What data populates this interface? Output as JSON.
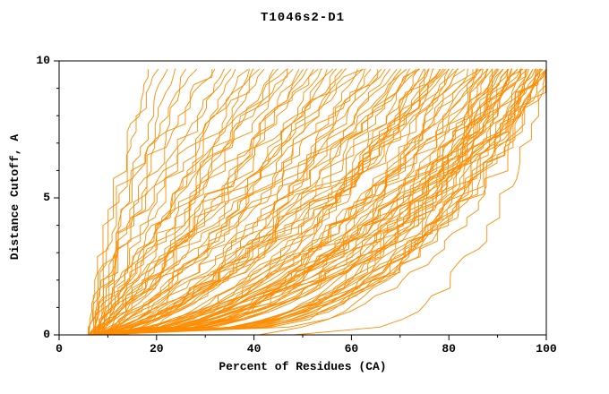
{
  "chart_data": {
    "type": "line",
    "title": "T1046s2-D1",
    "xlabel": "Percent of Residues (CA)",
    "ylabel": "Distance Cutoff, A",
    "xlim": [
      0,
      100
    ],
    "ylim": [
      0,
      10
    ],
    "x_ticks": [
      0,
      20,
      40,
      60,
      80,
      100
    ],
    "x_tick_labels": [
      "0",
      "20",
      "40",
      "60",
      "80",
      "100"
    ],
    "x_minor_step": 10,
    "y_ticks": [
      0,
      5,
      10
    ],
    "y_tick_labels": [
      "0",
      "5",
      "10"
    ],
    "y_minor_step": 1,
    "line_color": "#ff8c00",
    "axis_color": "#000000",
    "text_color": "#000000",
    "background": "#ffffff",
    "legend": "none",
    "grid": false,
    "description": "Ensemble of per-model cumulative GDT curves: distance cutoff (A) vs percent of CA residues fitting under that cutoff. Curves start near 5% at cutoff 0 and fan out; densest bundle reaches 85-100% at cutoff 10.",
    "y_top": 9.7,
    "seed": 20461,
    "curves_format": [
      "x_at_y0",
      "x_at_ytop",
      "shape_exponent"
    ],
    "curves": [
      [
        6,
        18,
        1.6
      ],
      [
        7,
        20,
        2.0
      ],
      [
        6,
        22,
        1.4
      ],
      [
        8,
        24,
        1.8
      ],
      [
        7,
        26,
        1.2
      ],
      [
        9,
        28,
        2.2
      ],
      [
        6,
        30,
        1.5
      ],
      [
        8,
        32,
        1.9
      ],
      [
        6,
        34,
        1.1
      ],
      [
        7,
        36,
        0.9
      ],
      [
        8,
        38,
        1.3
      ],
      [
        6,
        40,
        1.0
      ],
      [
        9,
        42,
        1.2
      ],
      [
        7,
        44,
        0.8
      ],
      [
        8,
        46,
        1.4
      ],
      [
        6,
        48,
        1.0
      ],
      [
        10,
        50,
        0.9
      ],
      [
        7,
        35,
        1.5
      ],
      [
        8,
        45,
        1.1
      ],
      [
        6,
        39,
        0.7
      ],
      [
        9,
        47,
        1.3
      ],
      [
        7,
        41,
        1.6
      ],
      [
        8,
        49,
        0.85
      ],
      [
        6,
        52,
        0.9
      ],
      [
        7,
        54,
        0.7
      ],
      [
        8,
        56,
        1.0
      ],
      [
        6,
        58,
        0.6
      ],
      [
        9,
        60,
        0.8
      ],
      [
        7,
        62,
        1.1
      ],
      [
        8,
        64,
        0.5
      ],
      [
        6,
        66,
        0.9
      ],
      [
        10,
        68,
        0.7
      ],
      [
        7,
        70,
        0.6
      ],
      [
        8,
        53,
        1.2
      ],
      [
        6,
        57,
        0.8
      ],
      [
        9,
        61,
        0.55
      ],
      [
        7,
        65,
        1.0
      ],
      [
        8,
        69,
        0.75
      ],
      [
        6,
        55,
        0.65
      ],
      [
        9,
        59,
        1.05
      ],
      [
        7,
        63,
        0.6
      ],
      [
        8,
        67,
        0.85
      ],
      [
        10,
        51,
        0.95
      ],
      [
        6,
        72,
        0.6
      ],
      [
        7,
        74,
        0.45
      ],
      [
        8,
        76,
        0.7
      ],
      [
        6,
        78,
        0.5
      ],
      [
        9,
        80,
        0.65
      ],
      [
        7,
        82,
        0.4
      ],
      [
        8,
        84,
        0.75
      ],
      [
        6,
        71,
        0.55
      ],
      [
        10,
        73,
        0.8
      ],
      [
        7,
        75,
        0.5
      ],
      [
        8,
        77,
        0.35
      ],
      [
        6,
        79,
        0.6
      ],
      [
        9,
        81,
        0.45
      ],
      [
        7,
        83,
        0.7
      ],
      [
        8,
        85,
        0.55
      ],
      [
        6,
        72,
        0.4
      ],
      [
        9,
        74,
        0.85
      ],
      [
        7,
        76,
        0.5
      ],
      [
        8,
        78,
        0.65
      ],
      [
        10,
        80,
        0.38
      ],
      [
        6,
        82,
        0.72
      ],
      [
        7,
        84,
        0.48
      ],
      [
        8,
        71,
        0.9
      ],
      [
        9,
        75,
        0.42
      ],
      [
        6,
        79,
        0.58
      ],
      [
        6,
        86,
        0.5
      ],
      [
        7,
        88,
        0.35
      ],
      [
        8,
        90,
        0.45
      ],
      [
        6,
        92,
        0.3
      ],
      [
        9,
        94,
        0.5
      ],
      [
        7,
        96,
        0.28
      ],
      [
        8,
        98,
        0.4
      ],
      [
        6,
        100,
        0.32
      ],
      [
        10,
        87,
        0.55
      ],
      [
        7,
        89,
        0.3
      ],
      [
        8,
        91,
        0.48
      ],
      [
        6,
        93,
        0.26
      ],
      [
        9,
        95,
        0.42
      ],
      [
        7,
        97,
        0.3
      ],
      [
        8,
        99,
        0.5
      ],
      [
        6,
        86,
        0.38
      ],
      [
        9,
        88,
        0.52
      ],
      [
        7,
        90,
        0.28
      ],
      [
        8,
        92,
        0.44
      ],
      [
        10,
        94,
        0.33
      ],
      [
        6,
        96,
        0.5
      ],
      [
        7,
        98,
        0.27
      ],
      [
        8,
        100,
        0.42
      ],
      [
        9,
        87,
        0.3
      ],
      [
        6,
        89,
        0.55
      ],
      [
        7,
        91,
        0.35
      ],
      [
        8,
        93,
        0.25
      ],
      [
        9,
        95,
        0.48
      ],
      [
        6,
        97,
        0.3
      ],
      [
        7,
        99,
        0.45
      ],
      [
        8,
        100,
        0.24
      ],
      [
        9,
        90,
        0.5
      ],
      [
        6,
        94,
        0.36
      ],
      [
        7,
        98,
        0.52
      ],
      [
        8,
        96,
        0.3
      ],
      [
        9,
        92,
        0.45
      ],
      [
        6,
        88,
        0.26
      ],
      [
        7,
        100,
        0.48
      ],
      [
        8,
        99,
        0.34
      ],
      [
        9,
        97,
        0.28
      ],
      [
        6,
        95,
        0.52
      ],
      [
        7,
        93,
        0.4
      ],
      [
        8,
        91,
        0.3
      ],
      [
        9,
        99,
        0.44
      ],
      [
        6,
        100,
        0.28
      ],
      [
        40,
        100,
        0.5
      ],
      [
        48,
        100,
        0.3
      ]
    ]
  }
}
